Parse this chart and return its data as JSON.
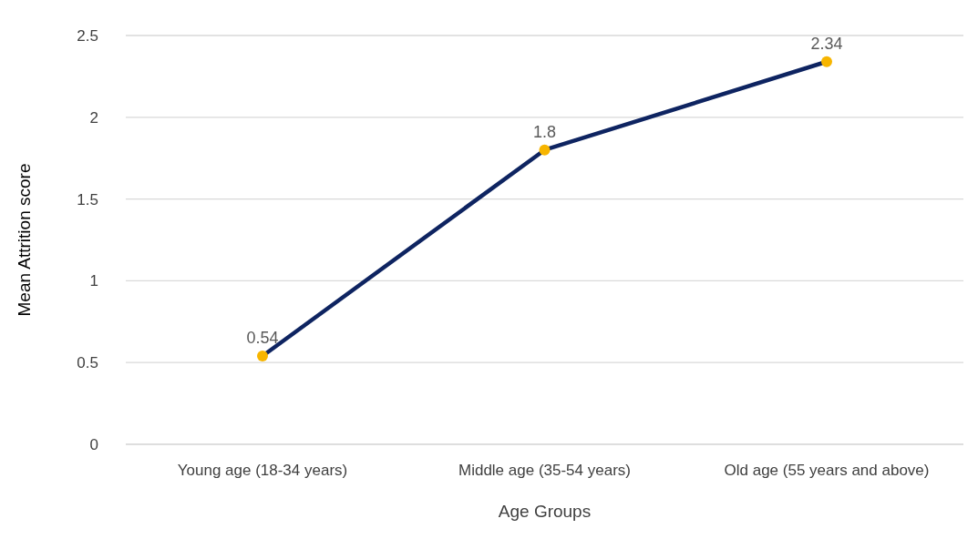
{
  "chart_data": {
    "type": "line",
    "xlabel": "Age Groups",
    "ylabel": "Mean Attrition score",
    "categories": [
      "Young age (18-34 years)",
      "Middle age (35-54 years)",
      "Old age (55 years and above)"
    ],
    "series": [
      {
        "color": "#0e2461",
        "colors": [
          "#f7b500",
          "#f7b500",
          "#f7b500"
        ],
        "values": [
          0.54,
          1.8,
          2.34
        ]
      }
    ],
    "ylim": [
      0,
      2.5
    ],
    "yticks": [
      0,
      0.5,
      1,
      1.5,
      2,
      2.5
    ],
    "grid": "y",
    "marker": "circle",
    "line_style": "solid",
    "data_labels": true,
    "legend": false
  }
}
